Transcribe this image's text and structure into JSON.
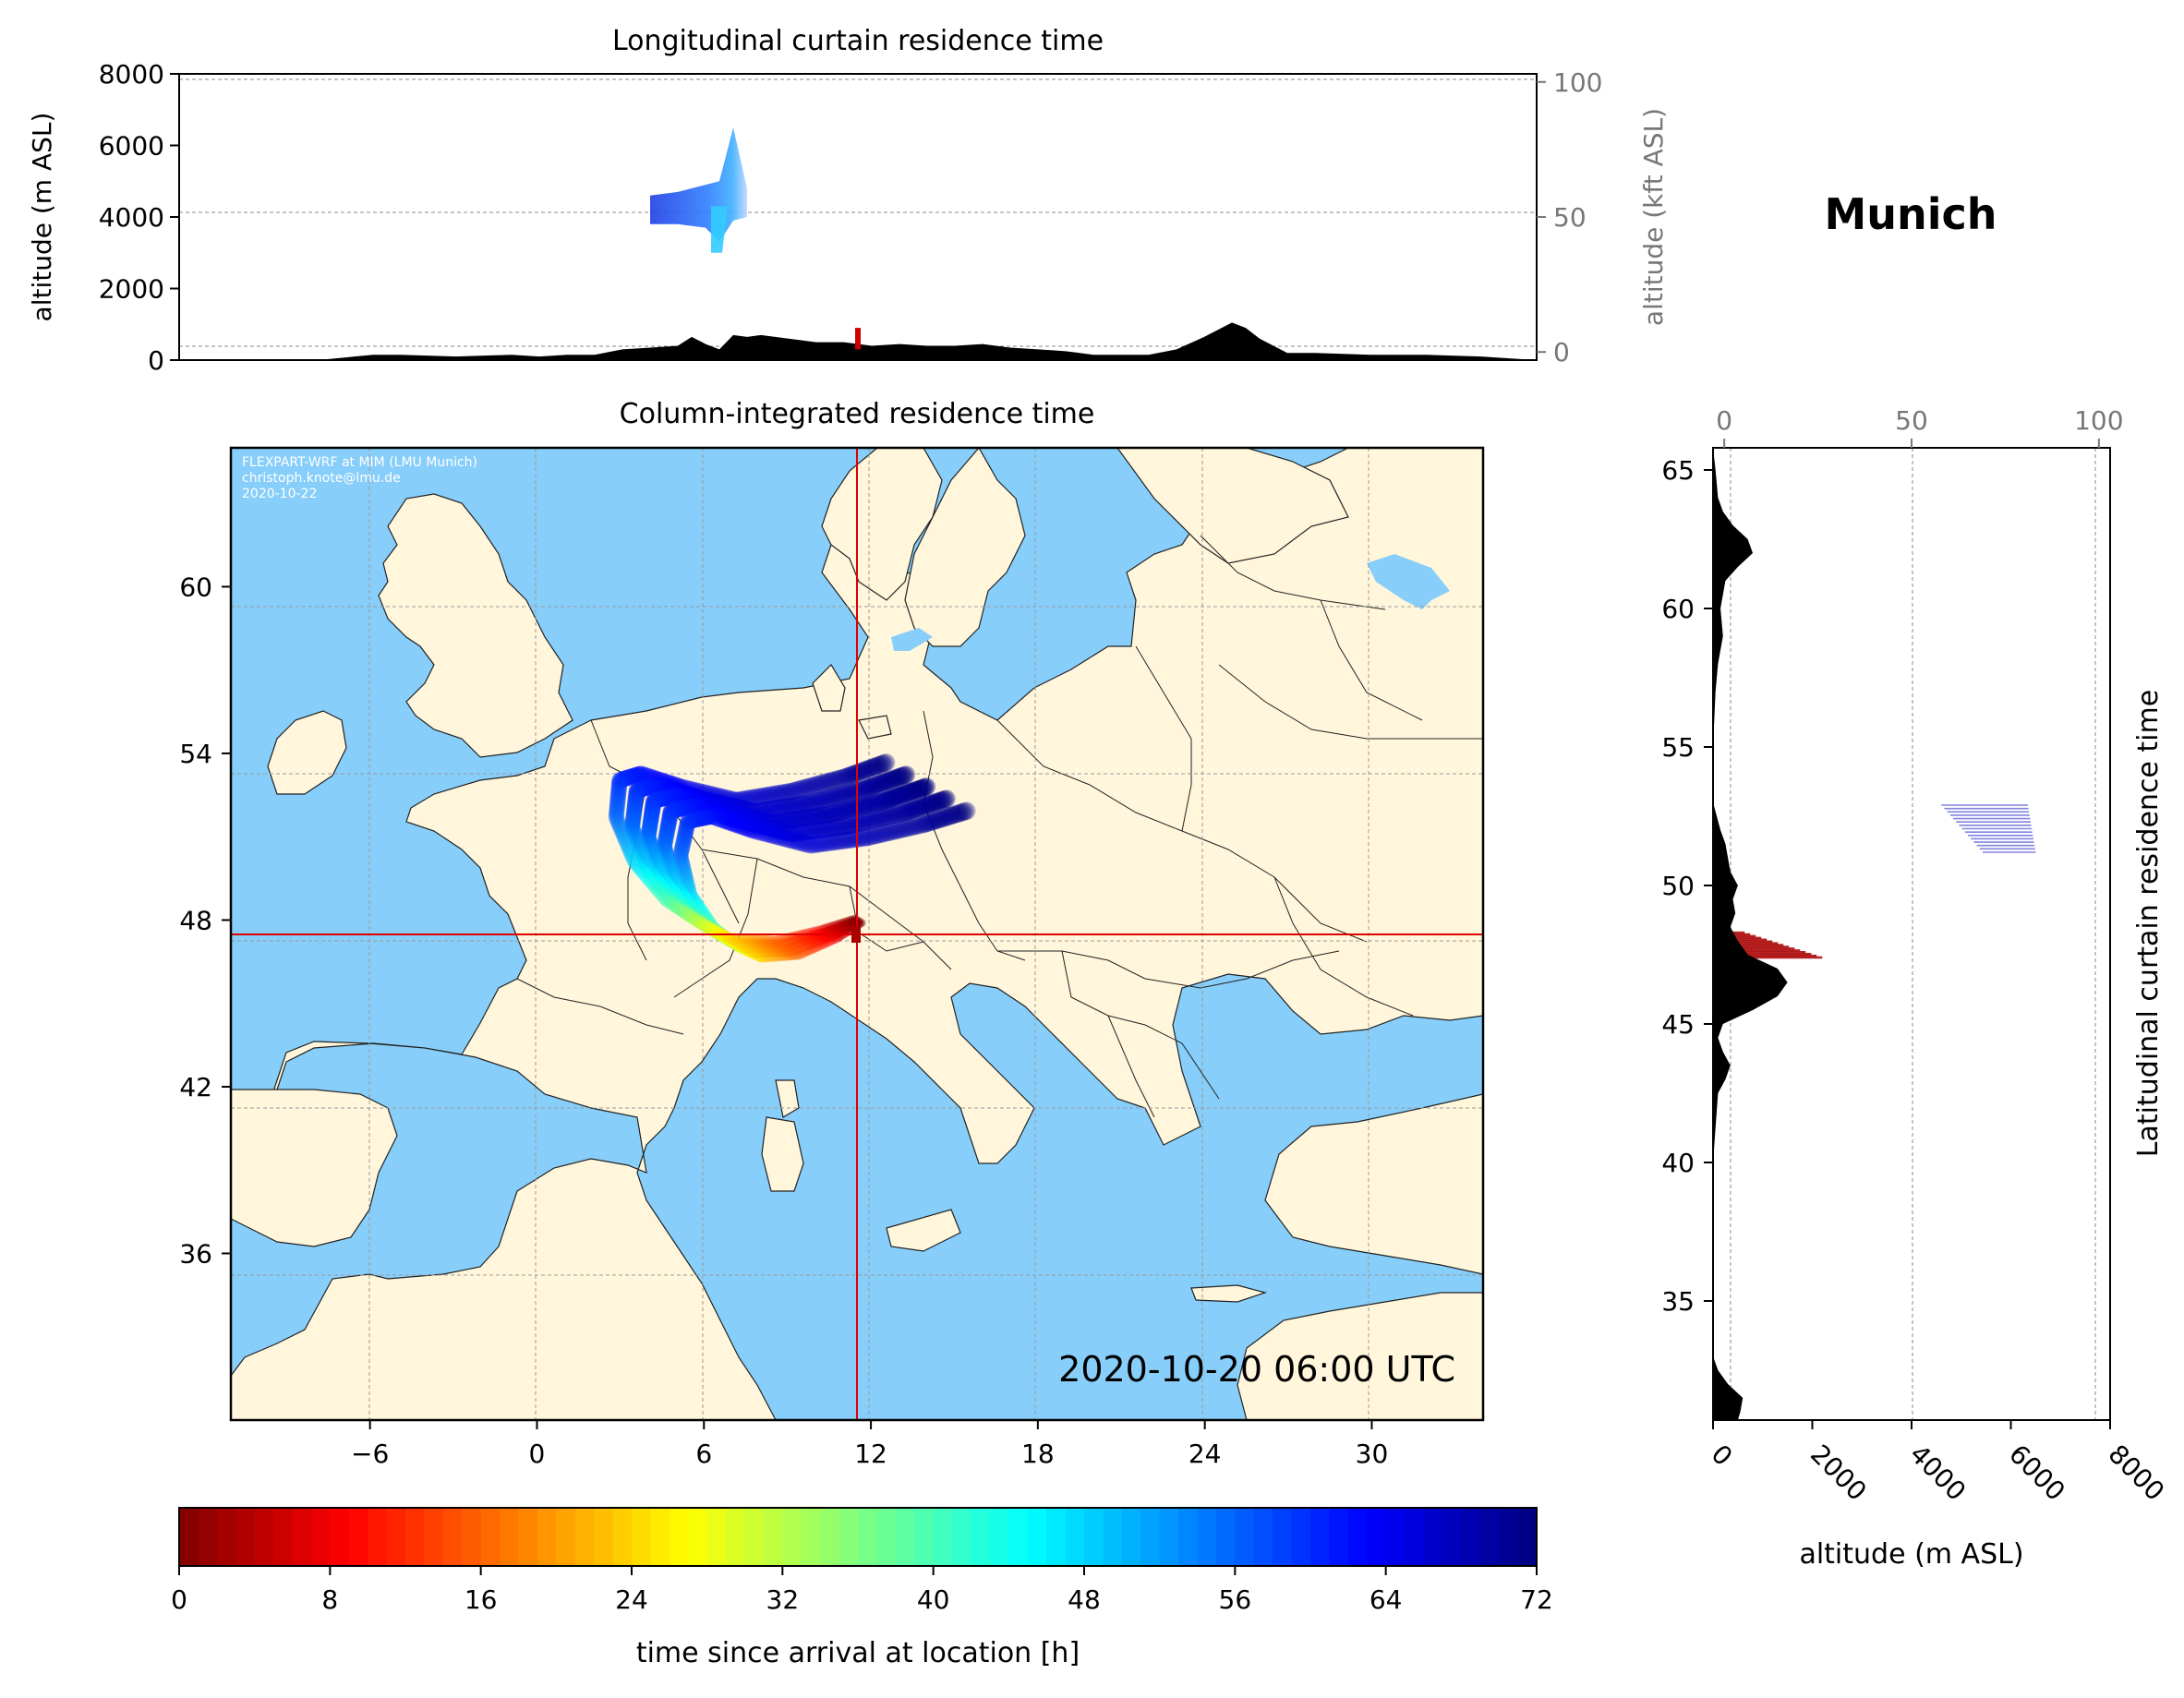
{
  "figure": {
    "location_title": "Munich",
    "timestamp": "2020-10-20 06:00 UTC",
    "credit_lines": [
      "FLEXPART-WRF at MIM (LMU Munich)",
      "christoph.knote@lmu.de",
      "2020-10-22"
    ]
  },
  "chart_data": [
    {
      "id": "longitudinal",
      "type": "area",
      "title": "Longitudinal curtain residence time",
      "ylabel": "altitude (m ASL)",
      "ylabel_right": "altitude (kft ASL)",
      "ylim": [
        0,
        8000
      ],
      "yticks": [
        "0",
        "2000",
        "4000",
        "6000",
        "8000"
      ],
      "ylim_right": [
        -3,
        103
      ],
      "yticks_right": [
        "0",
        "50",
        "100"
      ],
      "xlim": [
        -13,
        36
      ],
      "terrain_max_altitude": {
        "lon": [
          -13,
          -8,
          -6,
          -5,
          -3,
          -1,
          0,
          1,
          2,
          3,
          4,
          5,
          5.5,
          6,
          6.5,
          7,
          7.5,
          8,
          9,
          10,
          11,
          12,
          13,
          14,
          15,
          16,
          17,
          18,
          19,
          20,
          22,
          23,
          24,
          25,
          25.5,
          26,
          27,
          28,
          30,
          32,
          34,
          36
        ],
        "alt": [
          0,
          0,
          150,
          150,
          100,
          150,
          100,
          150,
          150,
          300,
          350,
          400,
          650,
          450,
          300,
          700,
          650,
          700,
          600,
          500,
          500,
          400,
          450,
          400,
          400,
          450,
          350,
          300,
          250,
          150,
          150,
          300,
          650,
          1050,
          900,
          600,
          200,
          200,
          150,
          150,
          100,
          0
        ]
      },
      "plume_altitude_range": {
        "lon": [
          4,
          5,
          6,
          6.5,
          7,
          7.5
        ],
        "alt_min": [
          3800,
          3800,
          3700,
          3300,
          3900,
          4000
        ],
        "alt_max": [
          4600,
          4700,
          4900,
          5000,
          6500,
          4800
        ]
      },
      "release_marker": {
        "lon": 11.5,
        "alt": [
          300,
          900
        ]
      }
    },
    {
      "id": "column",
      "type": "heatmap",
      "title": "Column-integrated residence time",
      "xlim": [
        -11,
        34
      ],
      "ylim": [
        30,
        65
      ],
      "xticks": [
        "−6",
        "0",
        "6",
        "12",
        "18",
        "24",
        "30"
      ],
      "yticks": [
        "36",
        "42",
        "48",
        "54",
        "60"
      ],
      "release_point": {
        "lon": 11.6,
        "lat": 48.1
      },
      "trajectory": {
        "lon": [
          11.6,
          10.5,
          9.0,
          7.5,
          6.5,
          5.5,
          4.5,
          4.0,
          4.2,
          5.0,
          6.5,
          8.5,
          10.5,
          12.5,
          14.0
        ],
        "lat": [
          48.0,
          47.5,
          47.0,
          47.0,
          47.5,
          48.2,
          49.5,
          51.0,
          52.3,
          52.5,
          52.0,
          51.5,
          51.8,
          52.3,
          52.8
        ],
        "hours": [
          0,
          8,
          16,
          24,
          32,
          40,
          48,
          56,
          60,
          62,
          64,
          66,
          68,
          70,
          72
        ]
      }
    },
    {
      "id": "latitudinal",
      "type": "area",
      "ylabel": "Latitudinal curtain residence time",
      "xlabel": "altitude (m ASL)",
      "xlim": [
        0,
        8000
      ],
      "xticks": [
        "0",
        "2000",
        "4000",
        "6000",
        "8000"
      ],
      "xlim_top": [
        -3,
        103
      ],
      "xticks_top": [
        "0",
        "50",
        "100"
      ],
      "ylim": [
        30.7,
        65.8
      ],
      "yticks": [
        "35",
        "40",
        "45",
        "50",
        "55",
        "60",
        "65"
      ],
      "terrain_max_altitude": {
        "lat": [
          30.7,
          31,
          31.5,
          32,
          32.5,
          33,
          35,
          40,
          42.5,
          43,
          43.5,
          44,
          44.5,
          45,
          45.5,
          46,
          46.5,
          47,
          47.5,
          48,
          48.5,
          49,
          49.5,
          50,
          50.5,
          51,
          51.5,
          52,
          53,
          55,
          57,
          58,
          59,
          60,
          61,
          61.5,
          62,
          62.5,
          63,
          63.5,
          64,
          65,
          65.8
        ],
        "alt": [
          500,
          550,
          600,
          300,
          100,
          0,
          0,
          0,
          100,
          250,
          350,
          200,
          100,
          200,
          800,
          1300,
          1500,
          1300,
          700,
          500,
          350,
          450,
          400,
          500,
          350,
          300,
          250,
          150,
          0,
          0,
          50,
          100,
          200,
          150,
          250,
          500,
          800,
          700,
          400,
          200,
          100,
          50,
          0
        ]
      },
      "plume_bands": [
        {
          "lat_min": 51.2,
          "lat_max": 52.9,
          "alt_min": 4600,
          "alt_max": 6500
        },
        {
          "lat_min": 47.4,
          "lat_max": 48.3,
          "alt_min": 400,
          "alt_max": 2200
        }
      ]
    },
    {
      "id": "colorbar",
      "type": "heatmap",
      "label": "time since arrival at location [h]",
      "min": 0,
      "max": 72,
      "ticks": [
        "0",
        "8",
        "16",
        "24",
        "32",
        "40",
        "48",
        "56",
        "64",
        "72"
      ],
      "colormap": "jet"
    }
  ],
  "colors": {
    "ocean": "#87cefa",
    "land": "#fff6dc",
    "terrain": "#000000",
    "release": "#cc0000",
    "crosshair": "#e00000",
    "right_axis": "#777777"
  }
}
